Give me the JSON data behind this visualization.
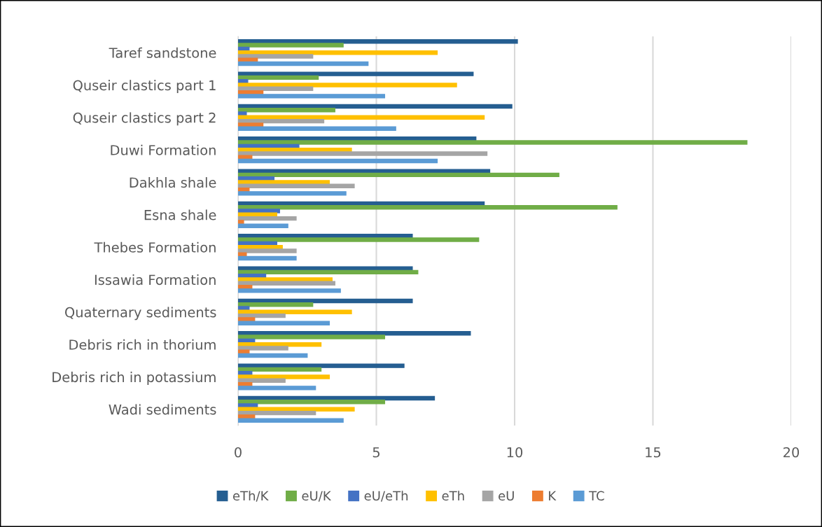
{
  "chart_data": {
    "type": "bar",
    "orientation": "horizontal",
    "categories": [
      "Taref sandstone",
      "Quseir clastics part 1",
      "Quseir clastics part 2",
      "Duwi Formation",
      "Dakhla shale",
      "Esna shale",
      "Thebes Formation",
      "Issawia Formation",
      "Quaternary sediments",
      "Debris rich in thorium",
      "Debris rich in potassium",
      "Wadi sediments"
    ],
    "series": [
      {
        "name": "eTh/K",
        "color": "#255e91",
        "values": [
          10.1,
          8.5,
          9.9,
          8.6,
          9.1,
          8.9,
          6.3,
          6.3,
          6.3,
          8.4,
          6.0,
          7.1
        ]
      },
      {
        "name": "eU/K",
        "color": "#70ad47",
        "values": [
          3.8,
          2.9,
          3.5,
          18.4,
          11.6,
          13.7,
          8.7,
          6.5,
          2.7,
          5.3,
          3.0,
          5.3
        ]
      },
      {
        "name": "eU/eTh",
        "color": "#4472c4",
        "values": [
          0.4,
          0.35,
          0.3,
          2.2,
          1.3,
          1.5,
          1.4,
          1.0,
          0.4,
          0.6,
          0.5,
          0.7
        ]
      },
      {
        "name": "eTh",
        "color": "#ffc000",
        "values": [
          7.2,
          7.9,
          8.9,
          4.1,
          3.3,
          1.4,
          1.6,
          3.4,
          4.1,
          3.0,
          3.3,
          4.2
        ]
      },
      {
        "name": "eU",
        "color": "#a5a5a5",
        "values": [
          2.7,
          2.7,
          3.1,
          9.0,
          4.2,
          2.1,
          2.1,
          3.5,
          1.7,
          1.8,
          1.7,
          2.8
        ]
      },
      {
        "name": "K",
        "color": "#ed7d31",
        "values": [
          0.7,
          0.9,
          0.9,
          0.5,
          0.4,
          0.2,
          0.3,
          0.5,
          0.6,
          0.4,
          0.5,
          0.6
        ]
      },
      {
        "name": "TC",
        "color": "#5b9bd5",
        "values": [
          4.7,
          5.3,
          5.7,
          7.2,
          3.9,
          1.8,
          2.1,
          3.7,
          3.3,
          2.5,
          2.8,
          3.8
        ]
      }
    ],
    "xlim": [
      0,
      20
    ],
    "xticks": [
      0,
      5,
      10,
      15,
      20
    ],
    "grid": "x",
    "legend": "bottom"
  }
}
